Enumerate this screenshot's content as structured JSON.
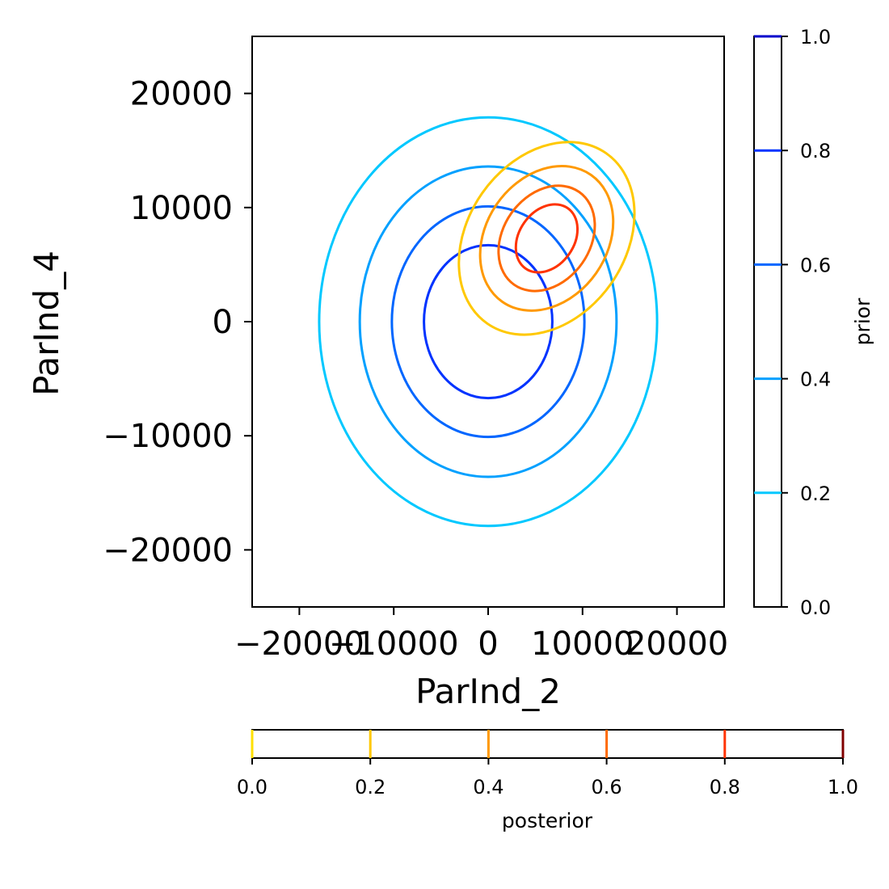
{
  "chart_data": {
    "type": "contour",
    "xlabel": "ParInd_2",
    "ylabel": "ParInd_4",
    "xlim": [
      -25000,
      25000
    ],
    "ylim": [
      -25000,
      25000
    ],
    "x_ticks": [
      -20000,
      -10000,
      0,
      10000,
      20000
    ],
    "y_ticks": [
      -20000,
      -10000,
      0,
      10000,
      20000
    ],
    "x_tick_labels": [
      "−20000",
      "−10000",
      "0",
      "10000",
      "20000"
    ],
    "y_tick_labels": [
      "−20000",
      "−10000",
      "0",
      "10000",
      "20000"
    ],
    "grid": false,
    "series": [
      {
        "name": "prior",
        "center": [
          0,
          0
        ],
        "contours": [
          {
            "level": 0.2,
            "color": "#00c8ff",
            "rx": 17900,
            "ry": 17900
          },
          {
            "level": 0.4,
            "color": "#00a0ff",
            "rx": 13600,
            "ry": 13600
          },
          {
            "level": 0.6,
            "color": "#0066ff",
            "rx": 10200,
            "ry": 10100
          },
          {
            "level": 0.8,
            "color": "#0033ff",
            "rx": 6800,
            "ry": 6700
          }
        ]
      },
      {
        "name": "posterior",
        "center": [
          6200,
          7300
        ],
        "correlation_angle_deg": -55,
        "contours": [
          {
            "level": 0.2,
            "color": "#ffc800",
            "rx": 11000,
            "ry": 6900
          },
          {
            "level": 0.4,
            "color": "#ff9900",
            "rx": 8200,
            "ry": 5300
          },
          {
            "level": 0.6,
            "color": "#ff6a00",
            "rx": 6000,
            "ry": 3800
          },
          {
            "level": 0.8,
            "color": "#ff3300",
            "rx": 3900,
            "ry": 2400
          }
        ]
      }
    ],
    "colorbars": [
      {
        "name": "prior",
        "label": "prior",
        "orientation": "vertical",
        "ticks": [
          0.0,
          0.2,
          0.4,
          0.6,
          0.8,
          1.0
        ],
        "tick_labels": [
          "0.0",
          "0.2",
          "0.4",
          "0.6",
          "0.8",
          "1.0"
        ],
        "line_levels": [
          0.2,
          0.4,
          0.6,
          0.8,
          1.0
        ],
        "line_colors": [
          "#00c8ff",
          "#00a0ff",
          "#0066ff",
          "#0033ff",
          "#0000cc"
        ]
      },
      {
        "name": "posterior",
        "label": "posterior",
        "orientation": "horizontal",
        "ticks": [
          0.0,
          0.2,
          0.4,
          0.6,
          0.8,
          1.0
        ],
        "tick_labels": [
          "0.0",
          "0.2",
          "0.4",
          "0.6",
          "0.8",
          "1.0"
        ],
        "line_levels": [
          0.0,
          0.2,
          0.4,
          0.6,
          0.8,
          1.0
        ],
        "line_colors": [
          "#ffe000",
          "#ffc800",
          "#ff9900",
          "#ff6a00",
          "#ff3300",
          "#800000"
        ]
      }
    ]
  }
}
